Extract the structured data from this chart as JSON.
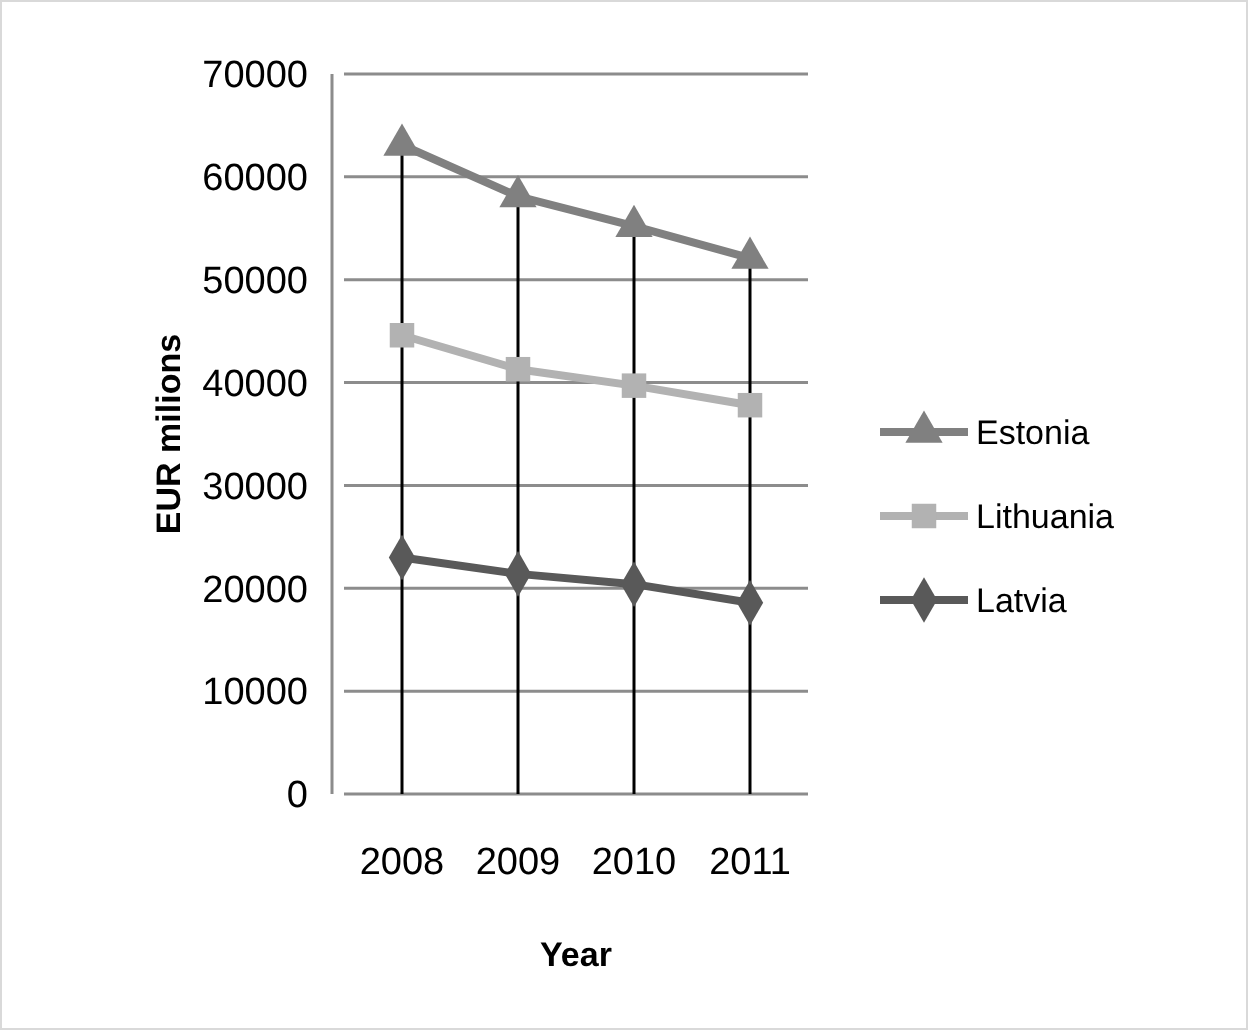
{
  "chart_data": {
    "type": "line",
    "xlabel": "Year",
    "ylabel": "EUR milions",
    "categories": [
      "2008",
      "2009",
      "2010",
      "2011"
    ],
    "series": [
      {
        "name": "Estonia",
        "color": "#808080",
        "marker": "triangle",
        "values": [
          63100,
          58100,
          55200,
          52100
        ]
      },
      {
        "name": "Lithuania",
        "color": "#b2b2b2",
        "marker": "square",
        "values": [
          44600,
          41300,
          39700,
          37800
        ]
      },
      {
        "name": "Latvia",
        "color": "#595959",
        "marker": "diamond",
        "values": [
          23000,
          21400,
          20400,
          18600
        ]
      }
    ],
    "ylim": [
      0,
      70000
    ],
    "yticks": [
      0,
      10000,
      20000,
      30000,
      40000,
      50000,
      60000,
      70000
    ],
    "grid": true,
    "legend": "right"
  }
}
